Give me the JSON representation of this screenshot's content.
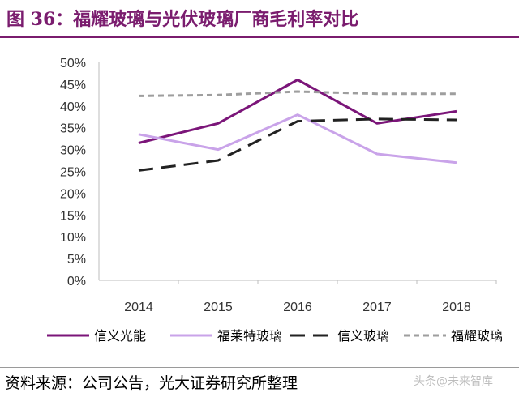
{
  "title": "图 36：福耀玻璃与光伏玻璃厂商毛利率对比",
  "source": "资料来源：公司公告，光大证券研究所整理",
  "watermark": "头条@未来智库",
  "chart_data": {
    "type": "line",
    "x": [
      "2014",
      "2015",
      "2016",
      "2017",
      "2018"
    ],
    "ylim": [
      0,
      50
    ],
    "yticks": [
      "0%",
      "5%",
      "10%",
      "15%",
      "20%",
      "25%",
      "30%",
      "35%",
      "40%",
      "45%",
      "50%"
    ],
    "grid": false,
    "legend_position": "bottom",
    "series": [
      {
        "name": "信义光能",
        "values": [
          31.5,
          36.0,
          46.0,
          36.0,
          38.8
        ],
        "color": "#7b1579",
        "dash": "solid"
      },
      {
        "name": "福莱特玻璃",
        "values": [
          33.5,
          30.0,
          38.0,
          29.0,
          27.0
        ],
        "color": "#c9a3e9",
        "dash": "solid"
      },
      {
        "name": "信义玻璃",
        "values": [
          25.2,
          27.5,
          36.5,
          37.0,
          36.8
        ],
        "color": "#222222",
        "dash": "long"
      },
      {
        "name": "福耀玻璃",
        "values": [
          42.3,
          42.5,
          43.3,
          42.8,
          42.8
        ],
        "color": "#9e9e9e",
        "dash": "short"
      }
    ]
  }
}
